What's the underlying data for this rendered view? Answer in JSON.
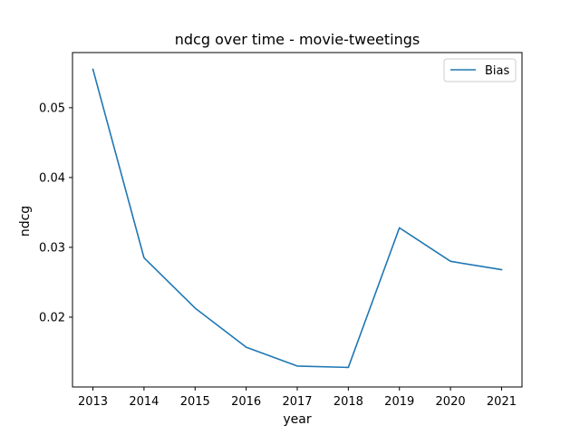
{
  "chart_data": {
    "type": "line",
    "title": "ndcg over time - movie-tweetings",
    "xlabel": "year",
    "ylabel": "ndcg",
    "x": [
      2013,
      2014,
      2015,
      2016,
      2017,
      2018,
      2019,
      2020,
      2021
    ],
    "x_tick_labels": [
      "2013",
      "2014",
      "2015",
      "2016",
      "2017",
      "2018",
      "2019",
      "2020",
      "2021"
    ],
    "y_ticks": [
      0.02,
      0.03,
      0.04,
      0.05
    ],
    "y_tick_labels": [
      "0.02",
      "0.03",
      "0.04",
      "0.05"
    ],
    "xlim": [
      2012.6,
      2021.4
    ],
    "ylim": [
      0.01,
      0.0579
    ],
    "grid": false,
    "legend": {
      "position": "top-right"
    },
    "series": [
      {
        "name": "Bias",
        "color": "#1f77b4",
        "values": [
          0.0555,
          0.0285,
          0.0213,
          0.0157,
          0.013,
          0.0128,
          0.0328,
          0.028,
          0.0268
        ]
      }
    ]
  }
}
